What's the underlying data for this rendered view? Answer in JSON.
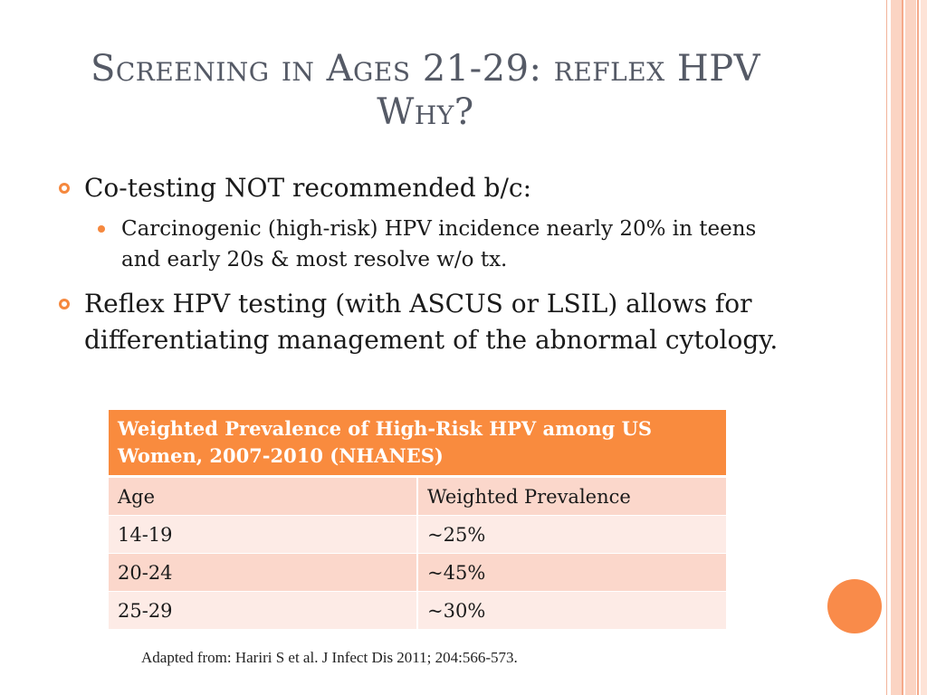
{
  "title": {
    "line1": "Screening in Ages 21-29: reflex HPV",
    "line2": "Why?"
  },
  "bullets": [
    {
      "text": "Co-testing NOT recommended b/c:",
      "sub": [
        "Carcinogenic (high-risk) HPV incidence nearly 20% in teens and early 20s & most resolve w/o tx."
      ]
    },
    {
      "text": "Reflex HPV testing (with ASCUS or LSIL) allows for differentiating management of the abnormal cytology."
    }
  ],
  "table": {
    "caption": "Weighted Prevalence of High-Risk HPV among US Women, 2007-2010 (NHANES)",
    "headers": [
      "Age",
      "Weighted Prevalence"
    ],
    "rows": [
      [
        "14-19",
        "~25%"
      ],
      [
        "20-24",
        "~45%"
      ],
      [
        "25-29",
        "~30%"
      ]
    ]
  },
  "source": "Adapted from: Hariri S et al. J Infect Dis 2011; 204:566-573.",
  "colors": {
    "accent": "#f98b3e",
    "row_dark": "#fbd7cb",
    "row_light": "#fdebe6",
    "title": "#555a66"
  }
}
